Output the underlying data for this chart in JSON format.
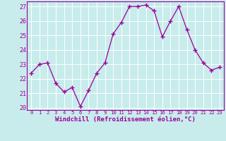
{
  "x": [
    0,
    1,
    2,
    3,
    4,
    5,
    6,
    7,
    8,
    9,
    10,
    11,
    12,
    13,
    14,
    15,
    16,
    17,
    18,
    19,
    20,
    21,
    22,
    23
  ],
  "y": [
    22.4,
    23.0,
    23.1,
    21.7,
    21.1,
    21.4,
    20.1,
    21.2,
    22.4,
    23.1,
    25.1,
    25.9,
    27.0,
    27.0,
    27.1,
    26.7,
    24.9,
    26.0,
    27.0,
    25.4,
    24.0,
    23.1,
    22.6,
    22.8
  ],
  "line_color": "#990099",
  "marker": "D",
  "marker_size": 2.2,
  "bg_color": "#c8ecec",
  "grid_color": "#b0d8d8",
  "xlabel": "Windchill (Refroidissement éolien,°C)",
  "ylabel_ticks": [
    20,
    21,
    22,
    23,
    24,
    25,
    26,
    27
  ],
  "xtick_labels": [
    "0",
    "1",
    "2",
    "3",
    "4",
    "5",
    "6",
    "7",
    "8",
    "9",
    "10",
    "11",
    "12",
    "13",
    "14",
    "15",
    "16",
    "17",
    "18",
    "19",
    "20",
    "21",
    "22",
    "23"
  ],
  "xlim": [
    -0.5,
    23.5
  ],
  "ylim": [
    19.85,
    27.35
  ],
  "tick_color": "#990099",
  "spine_color": "#990099",
  "xlabel_fontsize": 6.5,
  "ytick_fontsize": 6.0,
  "xtick_fontsize": 5.2
}
